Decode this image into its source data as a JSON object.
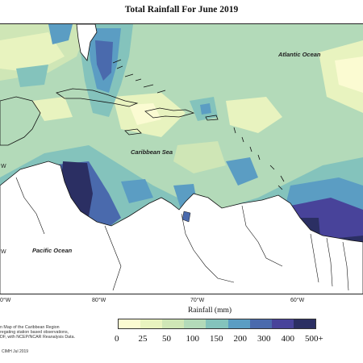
{
  "title": "Total Rainfall For June 2019",
  "ocean_labels": {
    "atlantic": "Atlantic Ocean",
    "caribbean": "Caribbean Sea",
    "pacific": "Pacific Ocean"
  },
  "lon_labels": [
    "0°W",
    "80°W",
    "70°W",
    "60°W"
  ],
  "lat_labels": [
    "W",
    "W"
  ],
  "colorbar": {
    "title": "Rainfall (mm)",
    "ticks": [
      "0",
      "25",
      "50",
      "100",
      "150",
      "200",
      "300",
      "400",
      "500+"
    ],
    "colors": [
      "#fbfbd2",
      "#e8f3bf",
      "#cfe6b6",
      "#b3dab9",
      "#84c3bc",
      "#5b9dc3",
      "#4a6aad",
      "#48439a",
      "#2b2f63"
    ]
  },
  "caption": [
    "n Map of the Caribbean Region",
    "regating station based observations,",
    "DF, with NCEP/NCAR Reanalysis Data."
  ],
  "credit": "CIMH Jul 2019"
}
